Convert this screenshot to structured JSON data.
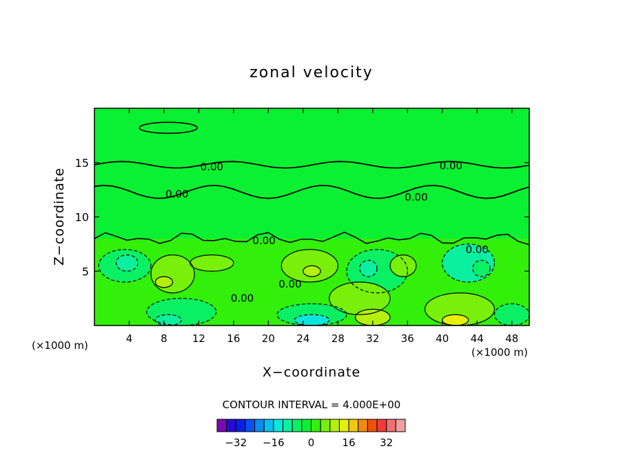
{
  "chart_data": {
    "type": "heatmap",
    "subtype": "filled-contour",
    "title": "zonal velocity",
    "xlabel": "X−coordinate",
    "ylabel": "Z−coordinate",
    "x_unit_left": "(×1000 m)",
    "x_unit_right": "(×1000 m)",
    "xlim": [
      0,
      50
    ],
    "ylim": [
      0,
      20
    ],
    "x_ticks": [
      "4",
      "8",
      "12",
      "16",
      "20",
      "24",
      "28",
      "32",
      "36",
      "40",
      "44",
      "48"
    ],
    "y_ticks": [
      "5",
      "10",
      "15"
    ],
    "x_tick_values": [
      4,
      8,
      12,
      16,
      20,
      24,
      28,
      32,
      36,
      40,
      44,
      48
    ],
    "y_tick_values": [
      5,
      10,
      15
    ],
    "contour_interval_text": "CONTOUR INTERVAL = 4.000E+00",
    "contour_interval": 4,
    "contour_labels": [
      {
        "text": "0.00",
        "x": 13.5,
        "y": 14.6
      },
      {
        "text": "0.00",
        "x": 9.5,
        "y": 12.1
      },
      {
        "text": "0.00",
        "x": 41.0,
        "y": 14.7
      },
      {
        "text": "0.00",
        "x": 37.0,
        "y": 11.8
      },
      {
        "text": "0.00",
        "x": 19.5,
        "y": 7.8
      },
      {
        "text": "0.00",
        "x": 22.5,
        "y": 3.8
      },
      {
        "text": "0.00",
        "x": 17.0,
        "y": 2.5
      },
      {
        "text": "0.00",
        "x": 44.0,
        "y": 7.0
      }
    ],
    "colorbar": {
      "levels": [
        -36,
        -32,
        -28,
        -24,
        -20,
        -16,
        -12,
        -8,
        -4,
        0,
        4,
        8,
        12,
        16,
        20,
        24,
        28,
        32,
        36
      ],
      "tick_labels": [
        "−32",
        "−16",
        "0",
        "16",
        "32"
      ],
      "tick_values": [
        -32,
        -16,
        0,
        16,
        32
      ],
      "colors": [
        "#7a0ab4",
        "#2a0ad2",
        "#0a1ee6",
        "#0a50f0",
        "#0a8cf0",
        "#0abef0",
        "#0ae6dc",
        "#0af0a0",
        "#0af064",
        "#0af032",
        "#32f00a",
        "#78f00a",
        "#b4f00a",
        "#e6f00a",
        "#f0c80a",
        "#f08c0a",
        "#f0500a",
        "#f03c3c",
        "#f07070",
        "#f0a0a0"
      ]
    },
    "regions": [
      {
        "level": 0,
        "color": "#0af032",
        "x": [
          0,
          50
        ],
        "y": [
          8,
          20
        ]
      },
      {
        "level": 4,
        "color": "#32f00a",
        "x": [
          0,
          50
        ],
        "y": [
          0,
          8
        ]
      },
      {
        "level": -4,
        "color": "#0af064",
        "x": [
          0.5,
          6.5
        ],
        "y": [
          4,
          7
        ]
      },
      {
        "level": -8,
        "color": "#0af0a0",
        "x": [
          2.5,
          5
        ],
        "y": [
          5,
          6.5
        ]
      },
      {
        "level": 4,
        "color": "#78f00a",
        "x": [
          6.5,
          11.5
        ],
        "y": [
          3,
          6.5
        ]
      },
      {
        "level": 8,
        "color": "#b4f00a",
        "x": [
          7,
          9
        ],
        "y": [
          3.5,
          4.5
        ]
      },
      {
        "level": 4,
        "color": "#78f00a",
        "x": [
          11,
          16
        ],
        "y": [
          5,
          6.5
        ]
      },
      {
        "level": 4,
        "color": "#78f00a",
        "x": [
          21.5,
          28
        ],
        "y": [
          4,
          7
        ]
      },
      {
        "level": 8,
        "color": "#b4f00a",
        "x": [
          24,
          26
        ],
        "y": [
          4.5,
          5.5
        ]
      },
      {
        "level": -4,
        "color": "#0af064",
        "x": [
          29,
          36
        ],
        "y": [
          3,
          7
        ]
      },
      {
        "level": -8,
        "color": "#0af0a0",
        "x": [
          30.5,
          32.5
        ],
        "y": [
          4.5,
          6
        ]
      },
      {
        "level": 4,
        "color": "#78f00a",
        "x": [
          34,
          37
        ],
        "y": [
          4.5,
          6.5
        ]
      },
      {
        "level": -8,
        "color": "#0af0a0",
        "x": [
          40,
          46
        ],
        "y": [
          4,
          7.5
        ]
      },
      {
        "level": -4,
        "color": "#0af064",
        "x": [
          43.5,
          45.5
        ],
        "y": [
          4.5,
          6
        ]
      },
      {
        "level": 4,
        "color": "#78f00a",
        "x": [
          27,
          34
        ],
        "y": [
          1,
          4
        ]
      },
      {
        "level": 8,
        "color": "#b4f00a",
        "x": [
          30,
          34
        ],
        "y": [
          0,
          1.5
        ]
      },
      {
        "level": -4,
        "color": "#0af064",
        "x": [
          6,
          14
        ],
        "y": [
          0,
          2.5
        ]
      },
      {
        "level": -8,
        "color": "#0af0a0",
        "x": [
          7,
          10
        ],
        "y": [
          0,
          1
        ]
      },
      {
        "level": -4,
        "color": "#0af064",
        "x": [
          21,
          29
        ],
        "y": [
          0,
          2
        ]
      },
      {
        "level": -12,
        "color": "#0ae6dc",
        "x": [
          23,
          27
        ],
        "y": [
          0,
          1
        ]
      },
      {
        "level": 4,
        "color": "#78f00a",
        "x": [
          38,
          46
        ],
        "y": [
          0,
          3
        ]
      },
      {
        "level": 12,
        "color": "#e6f00a",
        "x": [
          40,
          43
        ],
        "y": [
          0,
          1
        ]
      },
      {
        "level": -4,
        "color": "#0af064",
        "x": [
          46,
          50
        ],
        "y": [
          0,
          2
        ]
      }
    ]
  }
}
